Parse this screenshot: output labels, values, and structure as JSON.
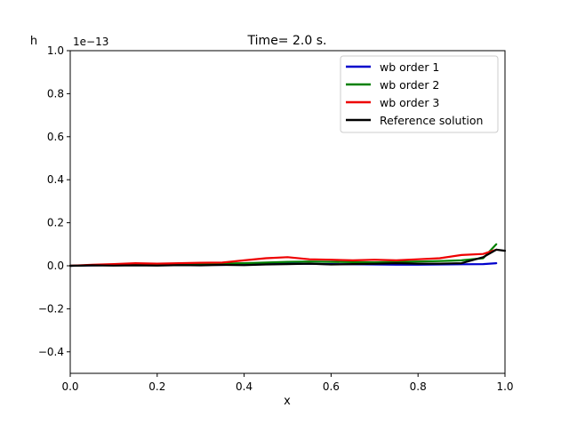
{
  "chart_data": {
    "type": "line",
    "title": "Time= 2.0 s.",
    "xlabel": "x",
    "ylabel": "h",
    "y_scale_label": "1e−13",
    "xlim": [
      0.0,
      1.0
    ],
    "ylim": [
      -0.5,
      1.0
    ],
    "x_ticks": [
      "0.0",
      "0.2",
      "0.4",
      "0.6",
      "0.8",
      "1.0"
    ],
    "y_ticks": [
      "−0.4",
      "−0.2",
      "0.0",
      "0.2",
      "0.4",
      "0.6",
      "0.8",
      "1.0"
    ],
    "x_tick_values": [
      0.0,
      0.2,
      0.4,
      0.6,
      0.8,
      1.0
    ],
    "y_tick_values": [
      -0.4,
      -0.2,
      0.0,
      0.2,
      0.4,
      0.6,
      0.8,
      1.0
    ],
    "grid": false,
    "legend_position": "top-right",
    "x": [
      0.0,
      0.05,
      0.1,
      0.15,
      0.2,
      0.25,
      0.3,
      0.35,
      0.4,
      0.45,
      0.5,
      0.55,
      0.6,
      0.65,
      0.7,
      0.75,
      0.8,
      0.85,
      0.9,
      0.95,
      0.98,
      1.0
    ],
    "series": [
      {
        "name": "wb order 1",
        "color": "#0000cc",
        "values": [
          0.0,
          0.002,
          0.003,
          0.004,
          0.003,
          0.004,
          0.005,
          0.004,
          0.006,
          0.008,
          0.01,
          0.009,
          0.008,
          0.007,
          0.006,
          0.005,
          0.005,
          0.006,
          0.007,
          0.008,
          0.012,
          null
        ]
      },
      {
        "name": "wb order 2",
        "color": "#008000",
        "values": [
          0.0,
          0.003,
          0.005,
          0.006,
          0.004,
          0.006,
          0.008,
          0.01,
          0.012,
          0.015,
          0.018,
          0.02,
          0.018,
          0.017,
          0.016,
          0.018,
          0.02,
          0.022,
          0.025,
          0.035,
          0.1,
          null
        ]
      },
      {
        "name": "wb order 3",
        "color": "#ee0000",
        "values": [
          0.0,
          0.005,
          0.008,
          0.012,
          0.01,
          0.012,
          0.014,
          0.015,
          0.025,
          0.035,
          0.04,
          0.03,
          0.028,
          0.025,
          0.028,
          0.025,
          0.03,
          0.035,
          0.05,
          0.055,
          0.075,
          null
        ]
      },
      {
        "name": "Reference solution",
        "color": "#000000",
        "values": [
          0.0,
          0.002,
          0.001,
          0.002,
          0.001,
          0.003,
          0.002,
          0.004,
          0.003,
          0.006,
          0.008,
          0.01,
          0.006,
          0.008,
          0.009,
          0.012,
          0.01,
          0.01,
          0.012,
          0.04,
          0.075,
          0.07
        ]
      }
    ]
  }
}
